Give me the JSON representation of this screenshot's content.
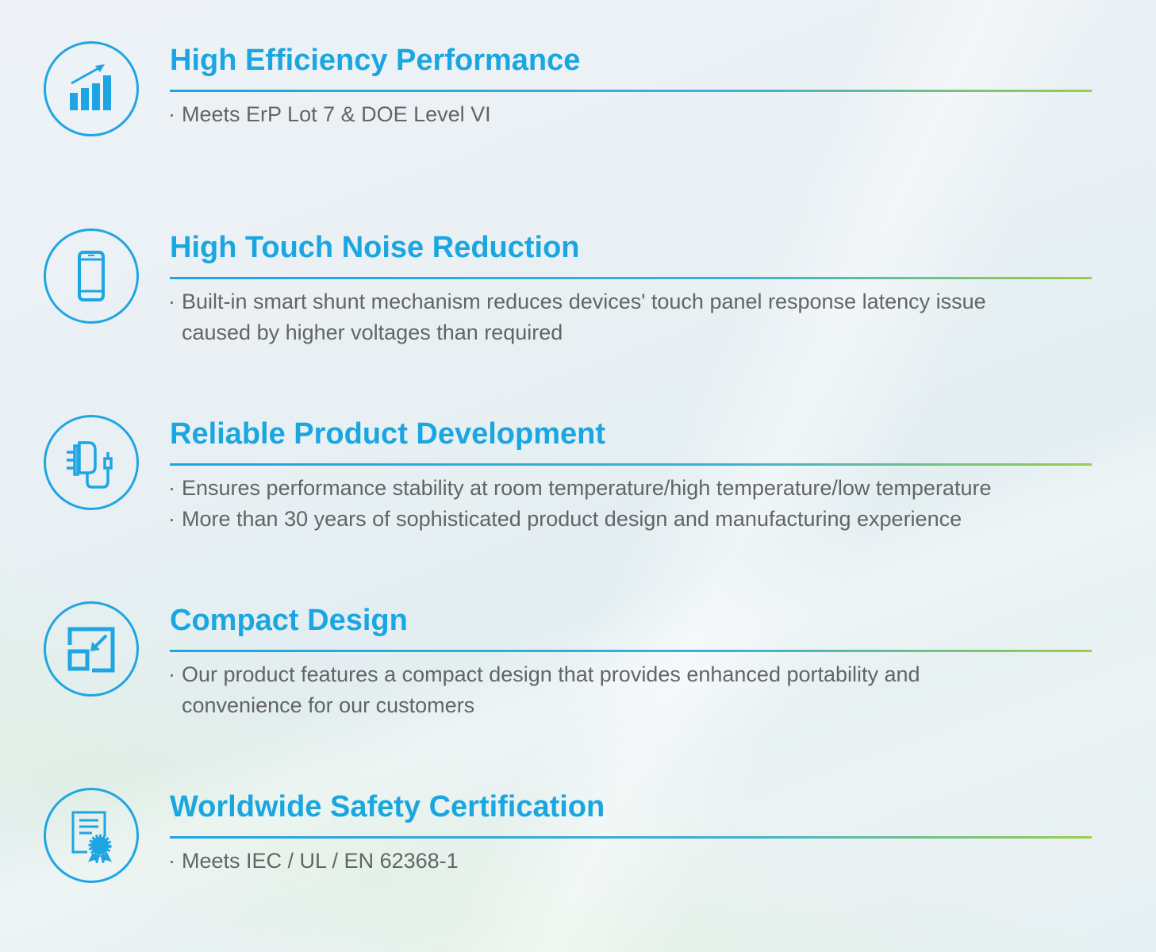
{
  "accent_color": "#1aa6e0",
  "text_color": "#636466",
  "features": [
    {
      "icon": "chart-growth-icon",
      "title": "High Efficiency Performance",
      "lines": [
        "Meets ErP Lot 7 & DOE Level VI"
      ]
    },
    {
      "icon": "smartphone-icon",
      "title": "High Touch Noise Reduction",
      "lines": [
        "Built-in smart shunt mechanism reduces devices' touch panel response latency issue",
        "caused by higher voltages than required"
      ]
    },
    {
      "icon": "power-adapter-icon",
      "title": "Reliable Product Development",
      "lines": [
        "Ensures performance stability at room temperature/high temperature/low temperature",
        "More than 30 years of sophisticated product  design and manufacturing experience"
      ]
    },
    {
      "icon": "compact-resize-icon",
      "title": "Compact Design",
      "lines": [
        "Our product features a compact design that provides enhanced portability and",
        "convenience for our customers"
      ]
    },
    {
      "icon": "certificate-icon",
      "title": "Worldwide Safety Certification",
      "lines": [
        "Meets IEC / UL / EN 62368-1"
      ]
    }
  ]
}
